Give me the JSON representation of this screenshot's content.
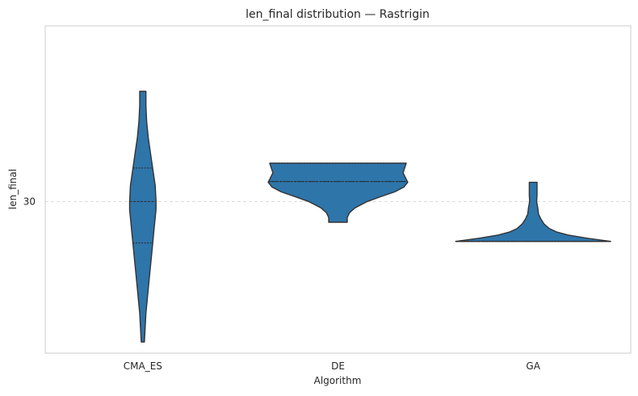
{
  "chart_data": {
    "type": "violin",
    "title": "len_final distribution — Rastrigin",
    "xlabel": "Algorithm",
    "ylabel": "len_final",
    "categories": [
      "CMA_ES",
      "DE",
      "GA"
    ],
    "yticks": [
      30
    ],
    "ylim": [
      20.5,
      41
    ],
    "grid": {
      "y": true,
      "x": false,
      "style": "dashed"
    },
    "colors": {
      "fill": "#2e75aa",
      "outline": "#333333",
      "grid": "#d9d9d9",
      "frame": "#cccccc"
    },
    "violins": [
      {
        "category": "CMA_ES",
        "min": 21.2,
        "max": 36.9,
        "quartiles": [
          27.4,
          30.0,
          32.1
        ],
        "profile": [
          [
            21.2,
            0.02
          ],
          [
            23.0,
            0.04
          ],
          [
            25.0,
            0.08
          ],
          [
            27.0,
            0.12
          ],
          [
            28.5,
            0.15
          ],
          [
            29.5,
            0.17
          ],
          [
            30.0,
            0.17
          ],
          [
            31.0,
            0.16
          ],
          [
            32.0,
            0.13
          ],
          [
            33.0,
            0.1
          ],
          [
            34.0,
            0.07
          ],
          [
            35.0,
            0.05
          ],
          [
            36.0,
            0.04
          ],
          [
            36.9,
            0.04
          ]
        ]
      },
      {
        "category": "DE",
        "min": 28.7,
        "max": 32.4,
        "quartiles": [
          31.25,
          31.25,
          32.4
        ],
        "profile": [
          [
            28.7,
            0.12
          ],
          [
            29.0,
            0.12
          ],
          [
            29.3,
            0.15
          ],
          [
            29.6,
            0.22
          ],
          [
            30.0,
            0.38
          ],
          [
            30.3,
            0.55
          ],
          [
            30.6,
            0.73
          ],
          [
            30.9,
            0.85
          ],
          [
            31.2,
            0.9
          ],
          [
            31.5,
            0.87
          ],
          [
            31.8,
            0.84
          ],
          [
            32.1,
            0.86
          ],
          [
            32.4,
            0.88
          ]
        ]
      },
      {
        "category": "GA",
        "min": 27.5,
        "max": 31.2,
        "quartiles": [
          27.5,
          27.5,
          27.5
        ],
        "profile": [
          [
            27.5,
            1.0
          ],
          [
            27.7,
            0.7
          ],
          [
            27.9,
            0.45
          ],
          [
            28.1,
            0.3
          ],
          [
            28.3,
            0.21
          ],
          [
            28.6,
            0.14
          ],
          [
            28.9,
            0.1
          ],
          [
            29.2,
            0.07
          ],
          [
            29.6,
            0.06
          ],
          [
            30.0,
            0.045
          ],
          [
            30.4,
            0.05
          ],
          [
            30.8,
            0.05
          ],
          [
            31.2,
            0.05
          ]
        ]
      }
    ]
  }
}
